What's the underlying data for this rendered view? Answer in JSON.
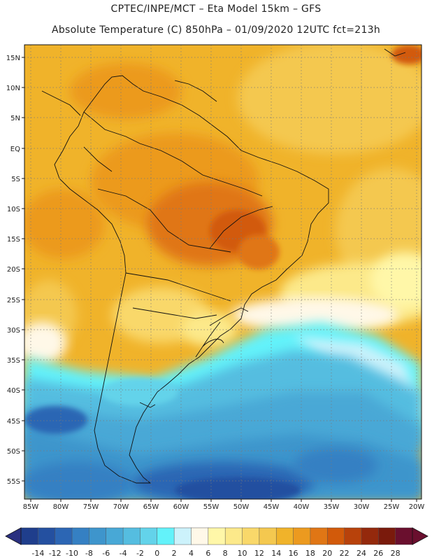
{
  "header": {
    "line1": "CPTEC/INPE/MCT –  Eta Model 15km – GFS",
    "line2": "Absolute Temperature (C) 850hPa – 01/09/2020 12UTC fct=213h"
  },
  "map": {
    "lat_labels": [
      "15N",
      "10N",
      "5N",
      "EQ",
      "5S",
      "10S",
      "15S",
      "20S",
      "25S",
      "30S",
      "35S",
      "40S",
      "45S",
      "50S",
      "55S"
    ],
    "lon_labels": [
      "85W",
      "80W",
      "75W",
      "70W",
      "65W",
      "60W",
      "55W",
      "50W",
      "45W",
      "40W",
      "35W",
      "30W",
      "25W",
      "20W"
    ],
    "gridlines": "dotted"
  },
  "colorbar": {
    "labels": [
      "-14",
      "-12",
      "-10",
      "-8",
      "-6",
      "-4",
      "-2",
      "0",
      "2",
      "4",
      "6",
      "8",
      "10",
      "12",
      "14",
      "16",
      "18",
      "20",
      "22",
      "24",
      "26",
      "28"
    ],
    "colors": [
      "#1f3e8c",
      "#2450a0",
      "#2c66b4",
      "#3580c3",
      "#3e95cc",
      "#48a8d6",
      "#55bde0",
      "#63d3ea",
      "#63f2fa",
      "#ccf2fb",
      "#fff8e8",
      "#fff7a8",
      "#fce98a",
      "#f9d86a",
      "#f4c84f",
      "#f0b32a",
      "#ec9a1f",
      "#e07615",
      "#d25a0a",
      "#b8420b",
      "#94290c",
      "#7a1a0c",
      "#6a0f2e"
    ],
    "left_arrow_color": "#2a3080",
    "right_arrow_color": "#6a0f2e"
  }
}
